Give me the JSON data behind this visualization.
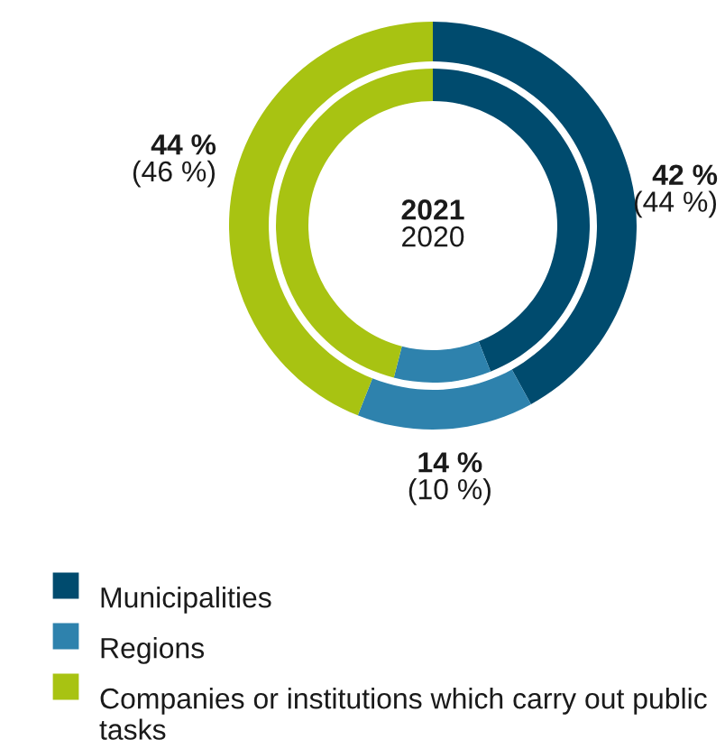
{
  "chart_data": {
    "type": "donut",
    "categories": [
      "Municipalities",
      "Regions",
      "Companies or institutions which carry out public tasks"
    ],
    "colors": [
      "#004b6e",
      "#2e82ad",
      "#a8c312"
    ],
    "series": [
      {
        "name": "2021",
        "values": [
          42,
          14,
          44
        ],
        "value_labels": [
          "42 %",
          "14 %",
          "44 %"
        ]
      },
      {
        "name": "2020",
        "values": [
          44,
          10,
          46
        ],
        "value_labels": [
          "(44 %)",
          "(10 %)",
          "(46 %)"
        ]
      }
    ],
    "legend": "bottom"
  }
}
